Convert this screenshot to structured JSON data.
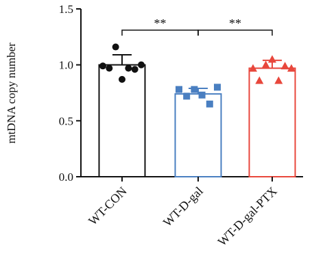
{
  "chart_data": {
    "type": "bar_scatter",
    "ylabel": "mtDNA copy number",
    "categories": [
      "WT-CON",
      "WT-D-gal",
      "WT-D-gal-PTX"
    ],
    "values": [
      1.0,
      0.74,
      0.97
    ],
    "errors": [
      0.09,
      0.05,
      0.07
    ],
    "points": [
      [
        0.99,
        0.97,
        1.16,
        0.87,
        0.97,
        0.96,
        1.0
      ],
      [
        0.78,
        0.72,
        0.78,
        0.73,
        0.65,
        0.8
      ],
      [
        0.97,
        0.86,
        1.0,
        1.05,
        0.86,
        0.99,
        0.97
      ]
    ],
    "colors": [
      "#111111",
      "#4a7fc1",
      "#e8473c"
    ],
    "markers": [
      "circle",
      "square",
      "triangle"
    ],
    "annotations": [
      "**",
      "**"
    ],
    "ylim": [
      0,
      1.5
    ],
    "yticks": [
      {
        "value": 0,
        "label": "0.0"
      },
      {
        "value": 0.5,
        "label": "0.5"
      },
      {
        "value": 1,
        "label": "1.0"
      },
      {
        "value": 1.5,
        "label": "1.5"
      }
    ]
  }
}
